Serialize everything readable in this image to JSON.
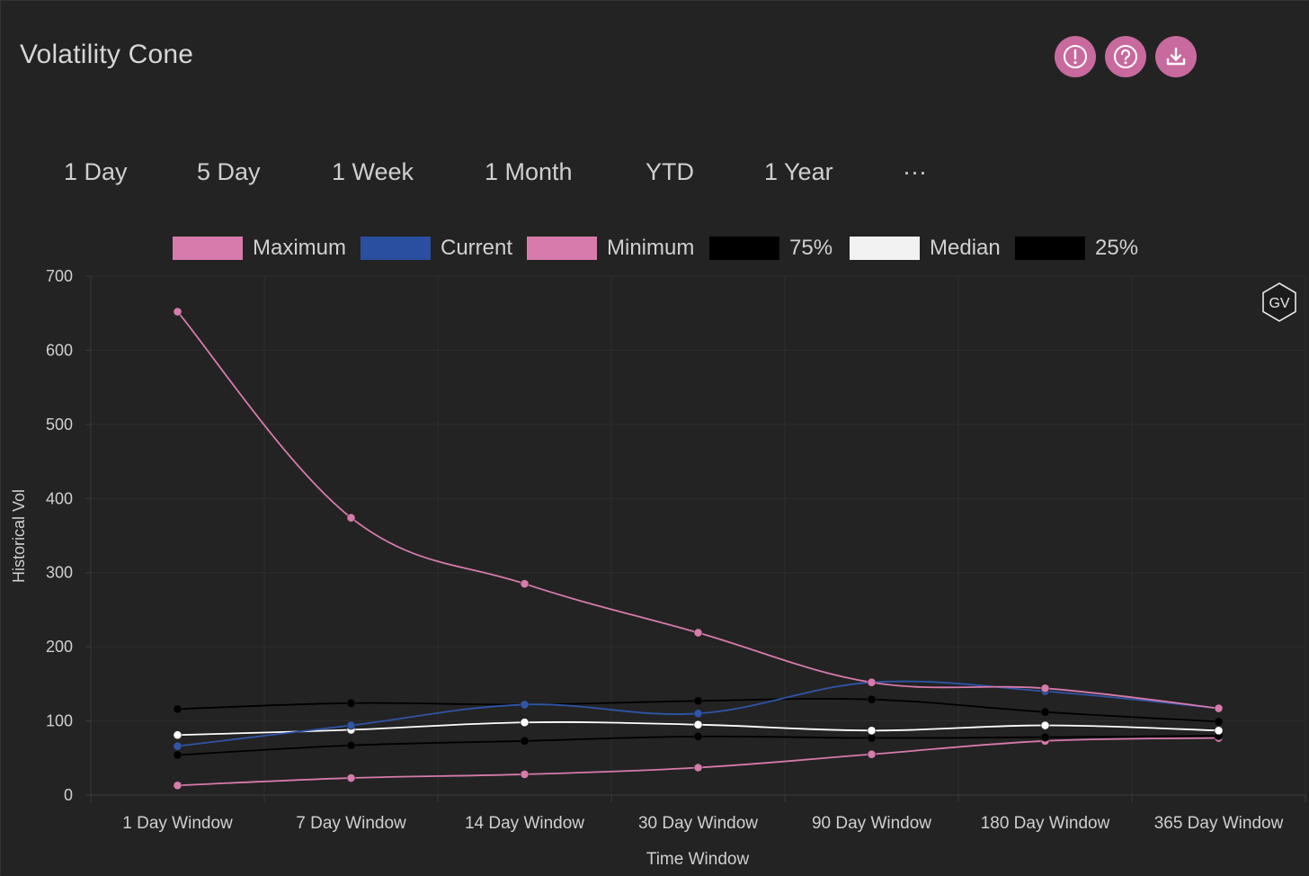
{
  "page": {
    "title": "Volatility Cone"
  },
  "toolbar": {
    "buttons": [
      {
        "name": "info",
        "icon": "exclamation-circle-icon",
        "color": "#c86a9e"
      },
      {
        "name": "help",
        "icon": "question-circle-icon",
        "color": "#c86a9e"
      },
      {
        "name": "download",
        "icon": "download-icon",
        "color": "#c86a9e"
      }
    ]
  },
  "ranges": [
    "1 Day",
    "5 Day",
    "1 Week",
    "1 Month",
    "YTD",
    "1 Year",
    "···"
  ],
  "watermark": {
    "text": "GV"
  },
  "chart_data": {
    "type": "line",
    "title": "",
    "xlabel": "Time Window",
    "ylabel": "Historical Vol",
    "ylim": [
      0,
      700
    ],
    "yticks": [
      0,
      100,
      200,
      300,
      400,
      500,
      600,
      700
    ],
    "grid": true,
    "legend_position": "top-center",
    "categories": [
      "1 Day Window",
      "7 Day Window",
      "14 Day Window",
      "30 Day Window",
      "90 Day Window",
      "180 Day Window",
      "365 Day Window"
    ],
    "series": [
      {
        "name": "Maximum",
        "color": "#d77aac",
        "swatch": "#d77aac",
        "values": [
          652,
          374,
          285,
          219,
          152,
          144,
          117
        ]
      },
      {
        "name": "Current",
        "color": "#2f55a8",
        "swatch": "#2a4fa0",
        "values": [
          66,
          94,
          122,
          110,
          152,
          140,
          117
        ]
      },
      {
        "name": "Minimum",
        "color": "#d77aac",
        "swatch": "#d77aac",
        "values": [
          13,
          23,
          28,
          37,
          55,
          73,
          77
        ]
      },
      {
        "name": "75%",
        "color": "#000000",
        "swatch": "#000000",
        "values": [
          116,
          124,
          122,
          127,
          129,
          112,
          99
        ]
      },
      {
        "name": "Median",
        "color": "#ffffff",
        "swatch": "#f2f2f2",
        "values": [
          81,
          88,
          98,
          95,
          87,
          94,
          87
        ]
      },
      {
        "name": "25%",
        "color": "#000000",
        "swatch": "#000000",
        "values": [
          54,
          67,
          73,
          79,
          77,
          78,
          80
        ]
      }
    ]
  }
}
